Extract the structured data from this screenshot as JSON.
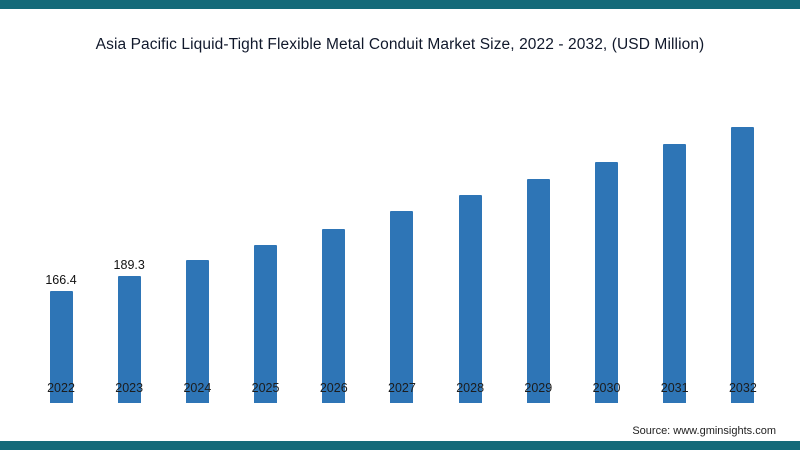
{
  "page": {
    "accent_color": "#156a79"
  },
  "chart_data": {
    "type": "bar",
    "title": "Asia Pacific Liquid-Tight Flexible Metal Conduit Market Size, 2022 - 2032, (USD Million)",
    "categories": [
      "2022",
      "2023",
      "2024",
      "2025",
      "2026",
      "2027",
      "2028",
      "2029",
      "2030",
      "2031",
      "2032"
    ],
    "values": [
      166.4,
      189.3,
      212,
      235,
      259,
      285,
      309,
      333,
      358,
      384,
      410
    ],
    "data_labels": [
      "166.4",
      "189.3",
      "",
      "",
      "",
      "",
      "",
      "",
      "",
      "",
      ""
    ],
    "bar_color": "#2e75b6",
    "xlabel": "",
    "ylabel": "",
    "ylim": [
      0,
      450
    ],
    "grid": false,
    "legend": false
  },
  "source": {
    "label": "Source: www.gminsights.com"
  }
}
